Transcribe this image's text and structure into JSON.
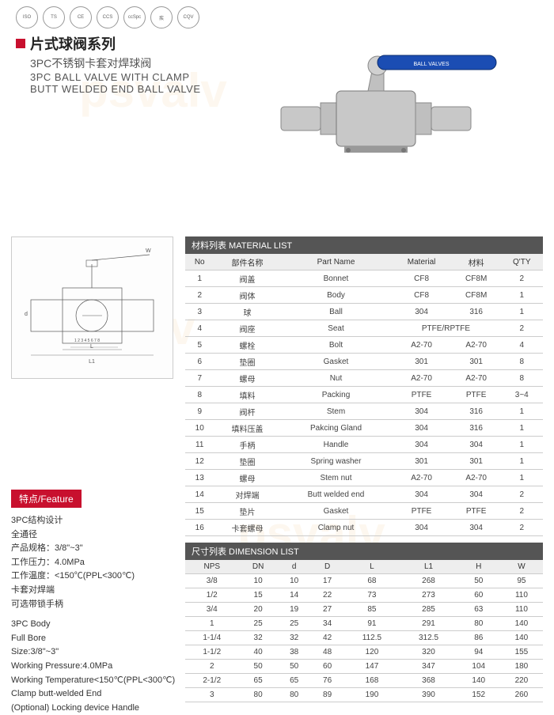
{
  "certs": [
    "ISO",
    "TS",
    "CE",
    "CCS",
    "ccSpc",
    "疾",
    "CQV"
  ],
  "title": {
    "main": "片式球阀系列",
    "sub": "3PC不锈钢卡套对焊球阀",
    "en1": "3PC BALL VALVE WITH CLAMP",
    "en2": "BUTT WELDED END BALL VALVE"
  },
  "feature_header": "特点/Feature",
  "features_cn": [
    "3PC结构设计",
    "全通径",
    "产品规格：3/8\"~3\"",
    "工作压力：4.0MPa",
    "工作温度：<150℃(PPL<300℃)",
    "卡套对焊端",
    "可选带锁手柄"
  ],
  "features_en": [
    "3PC Body",
    "Full Bore",
    "Size:3/8\"~3\"",
    "Working Pressure:4.0MPa",
    "Working Temperature<150℃(PPL<300℃)",
    "Clamp butt-welded End",
    "(Optional) Locking device Handle"
  ],
  "material_list": {
    "header": "材料列表 MATERIAL LIST",
    "cols": [
      "No",
      "部件名称",
      "Part Name",
      "Material",
      "材料",
      "Q'TY"
    ],
    "rows": [
      [
        "1",
        "阀盖",
        "Bonnet",
        "CF8",
        "CF8M",
        "2"
      ],
      [
        "2",
        "阀体",
        "Body",
        "CF8",
        "CF8M",
        "1"
      ],
      [
        "3",
        "球",
        "Ball",
        "304",
        "316",
        "1"
      ],
      [
        "4",
        "阀座",
        "Seat",
        "PTFE/RPTFE",
        "",
        "2"
      ],
      [
        "5",
        "螺栓",
        "Bolt",
        "A2-70",
        "A2-70",
        "4"
      ],
      [
        "6",
        "垫圈",
        "Gasket",
        "301",
        "301",
        "8"
      ],
      [
        "7",
        "螺母",
        "Nut",
        "A2-70",
        "A2-70",
        "8"
      ],
      [
        "8",
        "填料",
        "Packing",
        "PTFE",
        "PTFE",
        "3~4"
      ],
      [
        "9",
        "阀杆",
        "Stem",
        "304",
        "316",
        "1"
      ],
      [
        "10",
        "填料压盖",
        "Pakcing Gland",
        "304",
        "316",
        "1"
      ],
      [
        "11",
        "手柄",
        "Handle",
        "304",
        "304",
        "1"
      ],
      [
        "12",
        "垫圈",
        "Spring washer",
        "301",
        "301",
        "1"
      ],
      [
        "13",
        "螺母",
        "Stem nut",
        "A2-70",
        "A2-70",
        "1"
      ],
      [
        "14",
        "对焊端",
        "Butt welded end",
        "304",
        "304",
        "2"
      ],
      [
        "15",
        "垫片",
        "Gasket",
        "PTFE",
        "PTFE",
        "2"
      ],
      [
        "16",
        "卡套螺母",
        "Clamp nut",
        "304",
        "304",
        "2"
      ]
    ]
  },
  "dimension_list": {
    "header": "尺寸列表 DIMENSION LIST",
    "cols": [
      "NPS",
      "DN",
      "d",
      "D",
      "L",
      "L1",
      "H",
      "W"
    ],
    "rows": [
      [
        "3/8",
        "10",
        "10",
        "17",
        "68",
        "268",
        "50",
        "95"
      ],
      [
        "1/2",
        "15",
        "14",
        "22",
        "73",
        "273",
        "60",
        "110"
      ],
      [
        "3/4",
        "20",
        "19",
        "27",
        "85",
        "285",
        "63",
        "110"
      ],
      [
        "1",
        "25",
        "25",
        "34",
        "91",
        "291",
        "80",
        "140"
      ],
      [
        "1-1/4",
        "32",
        "32",
        "42",
        "112.5",
        "312.5",
        "86",
        "140"
      ],
      [
        "1-1/2",
        "40",
        "38",
        "48",
        "120",
        "320",
        "94",
        "155"
      ],
      [
        "2",
        "50",
        "50",
        "60",
        "147",
        "347",
        "104",
        "180"
      ],
      [
        "2-1/2",
        "65",
        "65",
        "76",
        "168",
        "368",
        "140",
        "220"
      ],
      [
        "3",
        "80",
        "80",
        "89",
        "190",
        "390",
        "152",
        "260"
      ]
    ]
  },
  "colors": {
    "accent": "#c8102e",
    "table_hdr": "#555555",
    "border": "#cccccc"
  }
}
